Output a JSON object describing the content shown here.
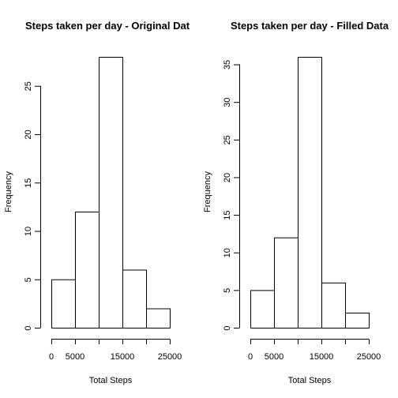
{
  "chart_data": [
    {
      "type": "bar",
      "title": "Steps taken per day - Original Dat",
      "xlabel": "Total Steps",
      "ylabel": "Frequency",
      "bins": [
        [
          0,
          5000
        ],
        [
          5000,
          10000
        ],
        [
          10000,
          15000
        ],
        [
          15000,
          20000
        ],
        [
          20000,
          25000
        ]
      ],
      "values": [
        5,
        12,
        28,
        6,
        2
      ],
      "xticks": [
        0,
        5000,
        15000,
        25000
      ],
      "xtick_positions": [
        0,
        5000,
        10000,
        15000,
        20000,
        25000
      ],
      "yticks": [
        0,
        5,
        10,
        15,
        20,
        25
      ],
      "xlim": [
        0,
        25000
      ],
      "ylim": [
        0,
        28
      ],
      "grid": false
    },
    {
      "type": "bar",
      "title": "Steps taken per day - Filled Data",
      "xlabel": "Total Steps",
      "ylabel": "Frequency",
      "bins": [
        [
          0,
          5000
        ],
        [
          5000,
          10000
        ],
        [
          10000,
          15000
        ],
        [
          15000,
          20000
        ],
        [
          20000,
          25000
        ]
      ],
      "values": [
        5,
        12,
        36,
        6,
        2
      ],
      "xticks": [
        0,
        5000,
        15000,
        25000
      ],
      "xtick_positions": [
        0,
        5000,
        10000,
        15000,
        20000,
        25000
      ],
      "yticks": [
        0,
        5,
        10,
        15,
        20,
        25,
        30,
        35
      ],
      "xlim": [
        0,
        25000
      ],
      "ylim": [
        0,
        36
      ],
      "grid": false
    }
  ]
}
